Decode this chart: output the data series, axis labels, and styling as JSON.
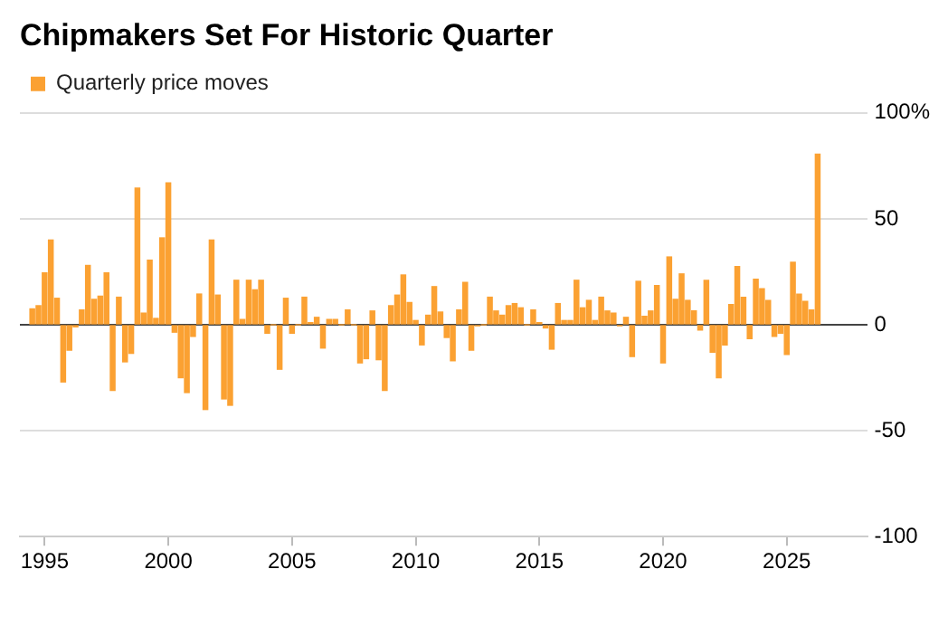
{
  "chart_data": {
    "type": "bar",
    "title": "Chipmakers Set For Historic Quarter",
    "x": [
      1994.5,
      1994.75,
      1995,
      1995.25,
      1995.5,
      1995.75,
      1996,
      1996.25,
      1996.5,
      1996.75,
      1997,
      1997.25,
      1997.5,
      1997.75,
      1998,
      1998.25,
      1998.5,
      1998.75,
      1999,
      1999.25,
      1999.5,
      1999.75,
      2000,
      2000.25,
      2000.5,
      2000.75,
      2001,
      2001.25,
      2001.5,
      2001.75,
      2002,
      2002.25,
      2002.5,
      2002.75,
      2003,
      2003.25,
      2003.5,
      2003.75,
      2004,
      2004.25,
      2004.5,
      2004.75,
      2005,
      2005.25,
      2005.5,
      2005.75,
      2006,
      2006.25,
      2006.5,
      2006.75,
      2007,
      2007.25,
      2007.5,
      2007.75,
      2008,
      2008.25,
      2008.5,
      2008.75,
      2009,
      2009.25,
      2009.5,
      2009.75,
      2010,
      2010.25,
      2010.5,
      2010.75,
      2011,
      2011.25,
      2011.5,
      2011.75,
      2012,
      2012.25,
      2012.5,
      2012.75,
      2013,
      2013.25,
      2013.5,
      2013.75,
      2014,
      2014.25,
      2014.5,
      2014.75,
      2015,
      2015.25,
      2015.5,
      2015.75,
      2016,
      2016.25,
      2016.5,
      2016.75,
      2017,
      2017.25,
      2017.5,
      2017.75,
      2018,
      2018.25,
      2018.5,
      2018.75,
      2019,
      2019.25,
      2019.5,
      2019.75,
      2020,
      2020.25,
      2020.5,
      2020.75,
      2021,
      2021.25,
      2021.5,
      2021.75,
      2022,
      2022.25,
      2022.5,
      2022.75,
      2023,
      2023.25,
      2023.5,
      2023.75,
      2024,
      2024.25,
      2024.5,
      2024.75,
      2025,
      2025.25,
      2025.5,
      2025.75,
      2026,
      2026.25
    ],
    "series": [
      {
        "name": "Quarterly price moves",
        "color": "#fba132",
        "values": [
          7.5,
          9,
          24.5,
          40,
          12.5,
          -27,
          -12,
          -1,
          7,
          28,
          12,
          13.5,
          24.5,
          -31,
          13,
          -17.5,
          -13.5,
          64.5,
          5.5,
          30.5,
          3,
          41,
          67,
          -3.5,
          -25,
          -32,
          -5.5,
          14.5,
          -40,
          40,
          14,
          -35,
          -38,
          21,
          2.5,
          21,
          16.5,
          21,
          -4,
          0,
          -21,
          12.5,
          -4,
          0,
          13,
          1,
          3.5,
          -11,
          2.5,
          2.5,
          0,
          7,
          0,
          -18,
          -16,
          6.5,
          -16.5,
          -31,
          9,
          14,
          23.5,
          10.5,
          2,
          -9.5,
          4.5,
          18,
          6,
          -6,
          -17,
          7,
          20,
          -12,
          -0.5,
          0,
          13,
          6.5,
          4.5,
          9,
          10,
          8,
          0,
          7,
          1,
          -1.5,
          -11.5,
          10,
          2,
          2,
          21,
          8,
          11.5,
          2,
          13,
          6.5,
          5.5,
          -0.5,
          3.5,
          -15,
          20.5,
          4,
          6.5,
          18.5,
          -18,
          32,
          12,
          24,
          11.5,
          6.5,
          -2.5,
          21,
          -13,
          -25,
          -9.5,
          9.5,
          27.5,
          13,
          -6.5,
          21.5,
          17,
          11.5,
          -5.5,
          -4,
          -14,
          29.5,
          14.5,
          11,
          7,
          80.5
        ]
      }
    ],
    "xlim": [
      1994,
      2028.25
    ],
    "xticks": [
      1995,
      2000,
      2005,
      2010,
      2015,
      2020,
      2025
    ],
    "ylim": [
      -100,
      100
    ],
    "yticks": [
      {
        "value": 100,
        "label": "100%"
      },
      50,
      0,
      -50,
      -100
    ],
    "grid": "y",
    "legend": "top left"
  }
}
